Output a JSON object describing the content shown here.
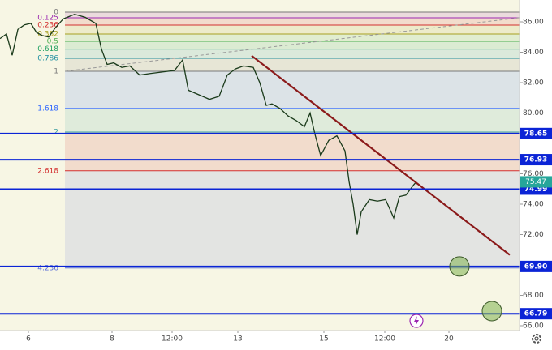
{
  "chart_data": {
    "type": "line",
    "xlim": [
      0,
      640
    ],
    "ylim": [
      65.68,
      87.44
    ],
    "xticks": [
      {
        "value": 35,
        "label": "6"
      },
      {
        "value": 138,
        "label": "8"
      },
      {
        "value": 212,
        "label": "12:00"
      },
      {
        "value": 293,
        "label": "13"
      },
      {
        "value": 399,
        "label": "15"
      },
      {
        "value": 474,
        "label": "12:00"
      },
      {
        "value": 553,
        "label": "20"
      }
    ],
    "yticks": [
      {
        "value": 66,
        "label": "66.00"
      },
      {
        "value": 68,
        "label": "68.00"
      },
      {
        "value": 72,
        "label": "72.00"
      },
      {
        "value": 74,
        "label": "74.00"
      },
      {
        "value": 76,
        "label": "76.00"
      },
      {
        "value": 80,
        "label": "80.00"
      },
      {
        "value": 82,
        "label": "82.00"
      },
      {
        "value": 84,
        "label": "84.00"
      },
      {
        "value": 86,
        "label": "86.00"
      }
    ],
    "series": [
      {
        "name": "price",
        "color": "#1a3a1a",
        "x": [
          0,
          8,
          15,
          22,
          30,
          38,
          45,
          52,
          60,
          68,
          78,
          92,
          105,
          118,
          125,
          132,
          140,
          150,
          160,
          172,
          185,
          200,
          215,
          225,
          232,
          245,
          258,
          270,
          280,
          290,
          300,
          312,
          320,
          328,
          335,
          345,
          355,
          365,
          375,
          382,
          388,
          395,
          405,
          415,
          425,
          430,
          435,
          440,
          445,
          455,
          465,
          475,
          485,
          492,
          500,
          510,
          513
        ],
        "values": [
          84.9,
          85.2,
          83.8,
          85.5,
          85.8,
          85.9,
          85.3,
          85.1,
          85.0,
          85.6,
          86.2,
          86.5,
          86.3,
          85.9,
          84.2,
          83.2,
          83.3,
          83.0,
          83.1,
          82.5,
          82.6,
          82.7,
          82.8,
          83.5,
          81.5,
          81.2,
          80.9,
          81.1,
          82.5,
          82.9,
          83.1,
          83.0,
          82.0,
          80.5,
          80.6,
          80.3,
          79.8,
          79.5,
          79.1,
          80.0,
          78.6,
          77.2,
          78.2,
          78.5,
          77.5,
          75.5,
          74.0,
          72.0,
          73.5,
          74.3,
          74.2,
          74.3,
          73.1,
          74.5,
          74.6,
          75.3,
          75.47
        ]
      }
    ],
    "fib_levels": [
      {
        "ratio": 0,
        "price": 86.64,
        "color": "#787878"
      },
      {
        "ratio": 0.125,
        "price": 86.27,
        "color": "#9c27b0"
      },
      {
        "ratio": 0.236,
        "price": 85.79,
        "color": "#d32f2f"
      },
      {
        "ratio": 0.382,
        "price": 85.2,
        "color": "#a8a020"
      },
      {
        "ratio": 0.5,
        "price": 84.72,
        "color": "#4caf50"
      },
      {
        "ratio": 0.618,
        "price": 84.21,
        "color": "#20a060"
      },
      {
        "ratio": 0.786,
        "price": 83.6,
        "color": "#2090a0"
      },
      {
        "ratio": 1,
        "price": 82.75,
        "color": "#787878"
      },
      {
        "ratio": 1.618,
        "price": 80.3,
        "color": "#2962ff"
      },
      {
        "ratio": 2,
        "price": 78.75,
        "color": "#3fa0a0"
      },
      {
        "ratio": 2.618,
        "price": 76.2,
        "color": "#d32f2f"
      },
      {
        "ratio": 4.236,
        "price": 69.8,
        "color": "#5b6fd6"
      }
    ],
    "levels": {
      "color": "#0b24d6",
      "values": [
        78.65,
        76.93,
        74.99,
        69.9,
        66.79
      ],
      "value_labels": [
        "78.65",
        "76.93",
        "74.99",
        "69.90",
        "66.79"
      ]
    },
    "last_price": {
      "value": 75.47,
      "color": "#26a69a"
    },
    "trend_line": {
      "color": "#8b1a1a",
      "x": [
        310,
        628
      ],
      "y": [
        83.77,
        70.66
      ]
    },
    "dashed_line": {
      "color": "#999999",
      "x": [
        80,
        640
      ],
      "y": [
        82.75,
        86.27
      ]
    },
    "targets": {
      "color": "#7fb24f",
      "x": [
        566,
        606
      ],
      "y": [
        69.9,
        66.96
      ]
    }
  }
}
